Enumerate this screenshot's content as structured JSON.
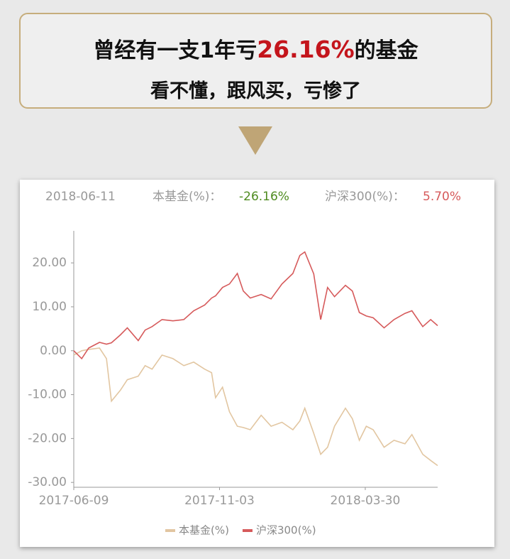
{
  "banner": {
    "line1_before": "曾经有一支1年亏",
    "line1_highlight": "26.16%",
    "line1_after": "的基金",
    "line2": "看不懂，跟风买，亏惨了"
  },
  "header": {
    "date": "2018-06-11",
    "fund_label": "本基金(%)：",
    "fund_value": "-26.16%",
    "index_label": "沪深300(%)：",
    "index_value": "5.70%"
  },
  "chart_data": {
    "type": "line",
    "x": [
      "2017-06-09",
      "2017-06-17",
      "2017-06-24",
      "2017-07-05",
      "2017-07-12",
      "2017-07-17",
      "2017-07-26",
      "2017-08-02",
      "2017-08-13",
      "2017-08-20",
      "2017-08-27",
      "2017-09-06",
      "2017-09-17",
      "2017-09-28",
      "2017-10-08",
      "2017-10-19",
      "2017-10-26",
      "2017-10-30",
      "2017-11-06",
      "2017-11-13",
      "2017-11-21",
      "2017-11-27",
      "2017-12-04",
      "2017-12-15",
      "2017-12-25",
      "2018-01-05",
      "2018-01-16",
      "2018-01-23",
      "2018-01-28",
      "2018-02-06",
      "2018-02-13",
      "2018-02-20",
      "2018-02-27",
      "2018-03-10",
      "2018-03-17",
      "2018-03-24",
      "2018-03-31",
      "2018-04-07",
      "2018-04-18",
      "2018-04-28",
      "2018-05-09",
      "2018-05-16",
      "2018-05-27",
      "2018-06-04",
      "2018-06-11"
    ],
    "series": [
      {
        "name": "本基金(%)",
        "color": "#e2c6a1",
        "values": [
          -1,
          0,
          0.3,
          0.6,
          -1.8,
          -11.5,
          -9,
          -6.6,
          -5.8,
          -3.4,
          -4.2,
          -1,
          -1.8,
          -3.4,
          -2.6,
          -4.2,
          -5,
          -10.7,
          -8.3,
          -13.9,
          -17.2,
          -17.5,
          -18,
          -14.7,
          -17.2,
          -16.3,
          -18,
          -16,
          -13.1,
          -18.8,
          -23.6,
          -22,
          -17.2,
          -13.1,
          -15.5,
          -20.4,
          -17.2,
          -18,
          -22,
          -20.4,
          -21.2,
          -19.1,
          -23.6,
          -25,
          -26.16
        ]
      },
      {
        "name": "沪深300(%)",
        "color": "#d65a5b",
        "values": [
          0,
          -1.8,
          0.6,
          1.9,
          1.5,
          1.8,
          3.6,
          5.2,
          2.3,
          4.7,
          5.5,
          7.1,
          6.8,
          7.1,
          9.1,
          10.4,
          12,
          12.5,
          14.4,
          15.2,
          17.6,
          13.6,
          12,
          12.8,
          11.8,
          15.2,
          17.6,
          21.7,
          22.5,
          17.5,
          7.1,
          14.4,
          12.3,
          14.9,
          13.6,
          8.7,
          7.9,
          7.5,
          5.2,
          7.1,
          8.5,
          9.1,
          5.5,
          7.1,
          5.7
        ]
      }
    ],
    "xlim": [
      "2017-06-09",
      "2018-06-11"
    ],
    "xticks": [
      "2017-06-09",
      "2017-11-03",
      "2018-03-30"
    ],
    "ylim": [
      -31.1,
      27.3
    ],
    "yticks": [
      {
        "value": 20,
        "label": "20.00"
      },
      {
        "value": 10,
        "label": "10.00"
      },
      {
        "value": 0,
        "label": "0.00"
      },
      {
        "value": -10,
        "label": "-10.00"
      },
      {
        "value": -20,
        "label": "-20.00"
      },
      {
        "value": -30,
        "label": "-30.00"
      }
    ],
    "legend": "bottom"
  }
}
